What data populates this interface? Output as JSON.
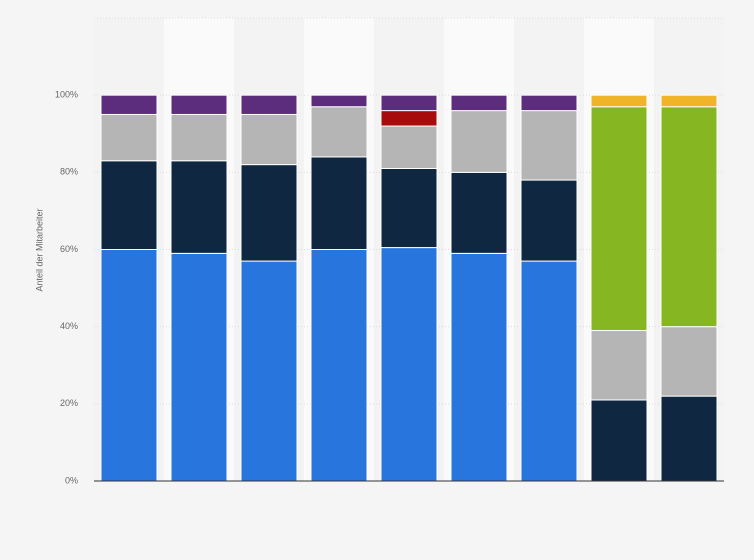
{
  "chart_data": {
    "type": "stacked-bar",
    "ylabel": "Anteil der Mitarbeiter",
    "categories": [
      null,
      null,
      null,
      null,
      null,
      null,
      null,
      null,
      null
    ],
    "series": [
      {
        "color": "#2876dd",
        "values": [
          60,
          59,
          57,
          60,
          60.5,
          59,
          57,
          null,
          null
        ]
      },
      {
        "color": "#0f2740",
        "values": [
          23,
          24,
          25,
          24,
          20.5,
          21,
          21,
          21,
          22
        ]
      },
      {
        "color": "#b5b5b5",
        "values": [
          12,
          12,
          13,
          13,
          11,
          16,
          18,
          18,
          18
        ]
      },
      {
        "color": "#a80b0b",
        "values": [
          null,
          null,
          null,
          null,
          4,
          null,
          null,
          null,
          null
        ]
      },
      {
        "color": "#86b723",
        "values": [
          null,
          null,
          null,
          null,
          null,
          null,
          null,
          58,
          57
        ]
      },
      {
        "color": "#5c2d7d",
        "values": [
          5,
          5,
          5,
          3,
          4,
          4,
          4,
          null,
          null
        ]
      },
      {
        "color": "#f0b429",
        "values": [
          null,
          null,
          null,
          null,
          null,
          null,
          null,
          3,
          3
        ]
      }
    ],
    "ylim": [
      0,
      120
    ],
    "yticks": [
      {
        "value": 0,
        "label": "0%"
      },
      {
        "value": 20,
        "label": "20%"
      },
      {
        "value": 40,
        "label": "40%"
      },
      {
        "value": 60,
        "label": "60%"
      },
      {
        "value": 80,
        "label": "80%"
      },
      {
        "value": 100,
        "label": "100%"
      }
    ],
    "grid": true
  }
}
